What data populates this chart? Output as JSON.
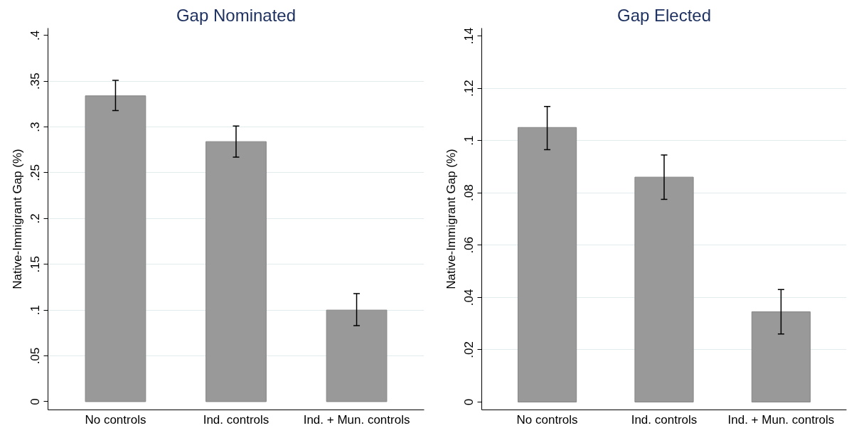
{
  "chart_data": [
    {
      "type": "bar",
      "title": "Gap Nominated",
      "ylabel": "Native-Immigrant Gap (%)",
      "categories": [
        "No controls",
        "Ind. controls",
        "Ind. + Mun. controls"
      ],
      "values": [
        0.334,
        0.284,
        0.1
      ],
      "color": "#999999",
      "errors": [
        [
          0.318,
          0.351
        ],
        [
          0.267,
          0.301
        ],
        [
          0.083,
          0.118
        ]
      ],
      "ylim": [
        -0.009,
        0.408
      ],
      "yticks": [
        0,
        {
          "value": 0.05,
          "label": ".05"
        },
        {
          "value": 0.1,
          "label": ".1"
        },
        {
          "value": 0.15,
          "label": ".15"
        },
        {
          "value": 0.2,
          "label": ".2"
        },
        {
          "value": 0.25,
          "label": ".25"
        },
        {
          "value": 0.3,
          "label": ".3"
        },
        {
          "value": 0.35,
          "label": ".35"
        },
        {
          "value": 0.4,
          "label": ".4"
        }
      ],
      "grid": "y"
    },
    {
      "type": "bar",
      "title": "Gap Elected",
      "ylabel": "Native-Immigrant Gap (%)",
      "categories": [
        "No controls",
        "Ind. controls",
        "Ind. + Mun. controls"
      ],
      "values": [
        0.105,
        0.086,
        0.0345
      ],
      "color": "#999999",
      "errors": [
        [
          0.0965,
          0.113
        ],
        [
          0.0775,
          0.0945
        ],
        [
          0.026,
          0.043
        ]
      ],
      "ylim": [
        -0.003,
        0.143
      ],
      "yticks": [
        0,
        {
          "value": 0.02,
          "label": ".02"
        },
        {
          "value": 0.04,
          "label": ".04"
        },
        {
          "value": 0.06,
          "label": ".06"
        },
        {
          "value": 0.08,
          "label": ".08"
        },
        {
          "value": 0.1,
          "label": ".1"
        },
        {
          "value": 0.12,
          "label": ".12"
        },
        {
          "value": 0.14,
          "label": ".14"
        }
      ],
      "grid": "y"
    }
  ]
}
